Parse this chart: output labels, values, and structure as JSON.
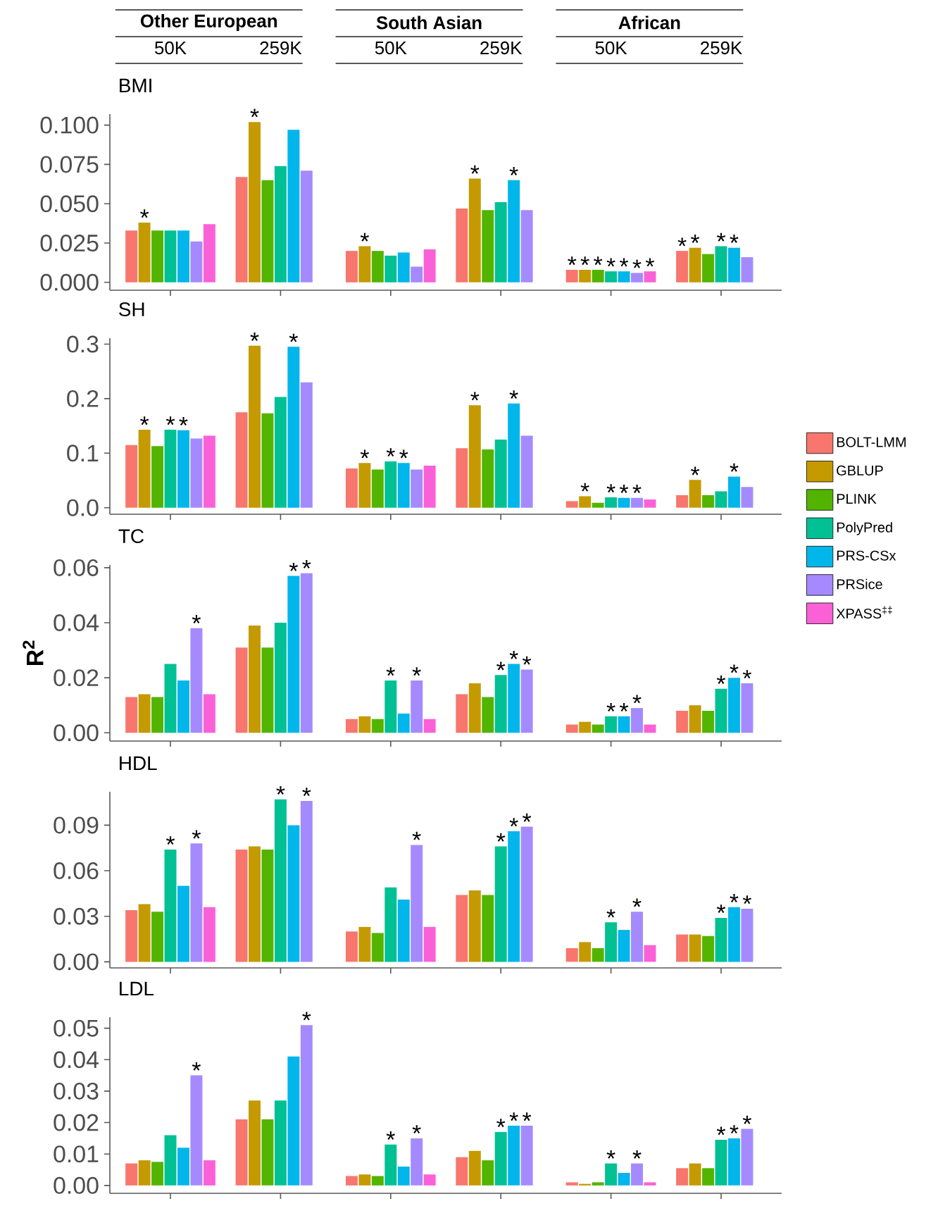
{
  "chart_data": [
    {
      "type": "bar",
      "title": "BMI",
      "categories": [
        "50K",
        "259K",
        "50K",
        "259K",
        "50K",
        "259K"
      ],
      "annotations": [
        "Other European",
        "South Asian",
        "African"
      ],
      "ylim": [
        -0.005,
        0.107
      ],
      "yticks": [
        {
          "value": 0,
          "label": "0.000"
        },
        {
          "value": 0.025,
          "label": "0.025"
        },
        {
          "value": 0.05,
          "label": "0.050"
        },
        {
          "value": 0.075,
          "label": "0.075"
        },
        {
          "value": 0.1,
          "label": "0.100"
        }
      ],
      "series": [
        {
          "color": "#f8766d",
          "values": [
            0.033,
            0.067,
            0.02,
            0.047,
            0.008,
            0.02
          ],
          "value_labels": [
            null,
            null,
            null,
            null,
            "*",
            "*"
          ]
        },
        {
          "color": "#c49a00",
          "values": [
            0.038,
            0.102,
            0.023,
            0.066,
            0.008,
            0.022
          ],
          "value_labels": [
            "*",
            "*",
            "*",
            "*",
            "*",
            "*"
          ]
        },
        {
          "color": "#53b400",
          "values": [
            0.033,
            0.065,
            0.02,
            0.046,
            0.008,
            0.018
          ],
          "value_labels": [
            null,
            null,
            null,
            null,
            "*",
            null
          ]
        },
        {
          "color": "#00c094",
          "values": [
            0.033,
            0.074,
            0.017,
            0.051,
            0.007,
            0.023
          ],
          "value_labels": [
            null,
            null,
            null,
            null,
            "*",
            "*"
          ]
        },
        {
          "color": "#00b6eb",
          "values": [
            0.033,
            0.097,
            0.019,
            0.065,
            0.007,
            0.022
          ],
          "value_labels": [
            null,
            null,
            null,
            "*",
            "*",
            "*"
          ]
        },
        {
          "color": "#a58aff",
          "values": [
            0.026,
            0.071,
            0.01,
            0.046,
            0.006,
            0.016
          ],
          "value_labels": [
            null,
            null,
            null,
            null,
            "*",
            null
          ]
        },
        {
          "color": "#fb61d7",
          "values": [
            0.037,
            null,
            0.021,
            null,
            0.007,
            null
          ],
          "value_labels": [
            null,
            null,
            null,
            null,
            "*",
            null
          ]
        }
      ]
    },
    {
      "type": "bar",
      "title": "SH",
      "categories": [
        null,
        null,
        null,
        null,
        null,
        null
      ],
      "ylim": [
        -0.012,
        0.311
      ],
      "yticks": [
        {
          "value": 0,
          "label": "0.0"
        },
        {
          "value": 0.1,
          "label": "0.1"
        },
        {
          "value": 0.2,
          "label": "0.2"
        },
        {
          "value": 0.3,
          "label": "0.3"
        }
      ],
      "series": [
        {
          "color": "#f8766d",
          "values": [
            0.115,
            0.175,
            0.072,
            0.109,
            0.012,
            0.023
          ],
          "value_labels": [
            null,
            null,
            null,
            null,
            null,
            null
          ]
        },
        {
          "color": "#c49a00",
          "values": [
            0.143,
            0.297,
            0.082,
            0.188,
            0.021,
            0.051
          ],
          "value_labels": [
            "*",
            "*",
            "*",
            "*",
            "*",
            "*"
          ]
        },
        {
          "color": "#53b400",
          "values": [
            0.113,
            0.173,
            0.07,
            0.107,
            0.009,
            0.023
          ],
          "value_labels": [
            null,
            null,
            null,
            null,
            null,
            null
          ]
        },
        {
          "color": "#00c094",
          "values": [
            0.143,
            0.203,
            0.085,
            0.125,
            0.019,
            0.03
          ],
          "value_labels": [
            "*",
            null,
            "*",
            null,
            "*",
            null
          ]
        },
        {
          "color": "#00b6eb",
          "values": [
            0.142,
            0.295,
            0.082,
            0.191,
            0.018,
            0.057
          ],
          "value_labels": [
            "*",
            "*",
            "*",
            "*",
            "*",
            "*"
          ]
        },
        {
          "color": "#a58aff",
          "values": [
            0.127,
            0.23,
            0.07,
            0.132,
            0.018,
            0.038
          ],
          "value_labels": [
            null,
            null,
            null,
            null,
            "*",
            null
          ]
        },
        {
          "color": "#fb61d7",
          "values": [
            0.132,
            null,
            0.077,
            null,
            0.015,
            null
          ],
          "value_labels": [
            null,
            null,
            null,
            null,
            null,
            null
          ]
        }
      ]
    },
    {
      "type": "bar",
      "title": "TC",
      "ylabel": "R$^{2}$",
      "legend": "right",
      "categories": [
        null,
        null,
        null,
        null,
        null,
        null
      ],
      "ylim": [
        -0.003,
        0.061
      ],
      "yticks": [
        {
          "value": 0,
          "label": "0.00"
        },
        {
          "value": 0.02,
          "label": "0.02"
        },
        {
          "value": 0.04,
          "label": "0.04"
        },
        {
          "value": 0.06,
          "label": "0.06"
        }
      ],
      "series": [
        {
          "name": "BOLT-LMM",
          "color": "#f8766d",
          "values": [
            0.013,
            0.031,
            0.005,
            0.014,
            0.003,
            0.008
          ],
          "value_labels": [
            null,
            null,
            null,
            null,
            null,
            null
          ]
        },
        {
          "name": "GBLUP",
          "color": "#c49a00",
          "values": [
            0.014,
            0.039,
            0.006,
            0.018,
            0.004,
            0.01
          ],
          "value_labels": [
            null,
            null,
            null,
            null,
            null,
            null
          ]
        },
        {
          "name": "PLINK",
          "color": "#53b400",
          "values": [
            0.013,
            0.031,
            0.005,
            0.013,
            0.003,
            0.008
          ],
          "value_labels": [
            null,
            null,
            null,
            null,
            null,
            null
          ]
        },
        {
          "name": "PolyPred",
          "color": "#00c094",
          "values": [
            0.025,
            0.04,
            0.019,
            0.021,
            0.006,
            0.016
          ],
          "value_labels": [
            null,
            null,
            "*",
            "*",
            "*",
            "*"
          ]
        },
        {
          "name": "PRS-CSx",
          "color": "#00b6eb",
          "values": [
            0.019,
            0.057,
            0.007,
            0.025,
            0.006,
            0.02
          ],
          "value_labels": [
            null,
            "*",
            null,
            "*",
            "*",
            "*"
          ]
        },
        {
          "name": "PRSice",
          "color": "#a58aff",
          "values": [
            0.038,
            0.058,
            0.019,
            0.023,
            0.009,
            0.018
          ],
          "value_labels": [
            "*",
            "*",
            "*",
            "*",
            "*",
            "*"
          ]
        },
        {
          "name": "XPASS$^{‡‡}$",
          "color": "#fb61d7",
          "values": [
            0.014,
            null,
            0.005,
            null,
            0.003,
            null
          ],
          "value_labels": [
            null,
            null,
            null,
            null,
            null,
            null
          ]
        }
      ]
    },
    {
      "type": "bar",
      "title": "HDL",
      "categories": [
        null,
        null,
        null,
        null,
        null,
        null
      ],
      "ylim": [
        -0.004,
        0.112
      ],
      "yticks": [
        {
          "value": 0,
          "label": "0.00"
        },
        {
          "value": 0.03,
          "label": "0.03"
        },
        {
          "value": 0.06,
          "label": "0.06"
        },
        {
          "value": 0.09,
          "label": "0.09"
        }
      ],
      "series": [
        {
          "color": "#f8766d",
          "values": [
            0.034,
            0.074,
            0.02,
            0.044,
            0.009,
            0.018
          ],
          "value_labels": [
            null,
            null,
            null,
            null,
            null,
            null
          ]
        },
        {
          "color": "#c49a00",
          "values": [
            0.038,
            0.076,
            0.023,
            0.047,
            0.013,
            0.018
          ],
          "value_labels": [
            null,
            null,
            null,
            null,
            null,
            null
          ]
        },
        {
          "color": "#53b400",
          "values": [
            0.033,
            0.074,
            0.019,
            0.044,
            0.009,
            0.017
          ],
          "value_labels": [
            null,
            null,
            null,
            null,
            null,
            null
          ]
        },
        {
          "color": "#00c094",
          "values": [
            0.074,
            0.107,
            0.049,
            0.076,
            0.026,
            0.029
          ],
          "value_labels": [
            "*",
            "*",
            null,
            "*",
            "*",
            "*"
          ]
        },
        {
          "color": "#00b6eb",
          "values": [
            0.05,
            0.09,
            0.041,
            0.086,
            0.021,
            0.036
          ],
          "value_labels": [
            null,
            null,
            null,
            "*",
            null,
            "*"
          ]
        },
        {
          "color": "#a58aff",
          "values": [
            0.078,
            0.106,
            0.077,
            0.089,
            0.033,
            0.035
          ],
          "value_labels": [
            "*",
            "*",
            "*",
            "*",
            "*",
            "*"
          ]
        },
        {
          "color": "#fb61d7",
          "values": [
            0.036,
            null,
            0.023,
            null,
            0.011,
            null
          ],
          "value_labels": [
            null,
            null,
            null,
            null,
            null,
            null
          ]
        }
      ]
    },
    {
      "type": "bar",
      "title": "LDL",
      "categories": [
        null,
        null,
        null,
        null,
        null,
        null
      ],
      "ylim": [
        -0.0025,
        0.0535
      ],
      "yticks": [
        {
          "value": 0,
          "label": "0.00"
        },
        {
          "value": 0.01,
          "label": "0.01"
        },
        {
          "value": 0.02,
          "label": "0.02"
        },
        {
          "value": 0.03,
          "label": "0.03"
        },
        {
          "value": 0.04,
          "label": "0.04"
        },
        {
          "value": 0.05,
          "label": "0.05"
        }
      ],
      "series": [
        {
          "color": "#f8766d",
          "values": [
            0.007,
            0.021,
            0.003,
            0.009,
            0.001,
            0.0055
          ],
          "value_labels": [
            null,
            null,
            null,
            null,
            null,
            null
          ]
        },
        {
          "color": "#c49a00",
          "values": [
            0.008,
            0.027,
            0.0035,
            0.011,
            0.0005,
            0.007
          ],
          "value_labels": [
            null,
            null,
            null,
            null,
            null,
            null
          ]
        },
        {
          "color": "#53b400",
          "values": [
            0.0075,
            0.021,
            0.003,
            0.008,
            0.001,
            0.0055
          ],
          "value_labels": [
            null,
            null,
            null,
            null,
            null,
            null
          ]
        },
        {
          "color": "#00c094",
          "values": [
            0.016,
            0.027,
            0.013,
            0.017,
            0.007,
            0.0145
          ],
          "value_labels": [
            null,
            null,
            "*",
            "*",
            "*",
            "*"
          ]
        },
        {
          "color": "#00b6eb",
          "values": [
            0.012,
            0.041,
            0.006,
            0.019,
            0.004,
            0.015
          ],
          "value_labels": [
            null,
            null,
            null,
            "*",
            null,
            "*"
          ]
        },
        {
          "color": "#a58aff",
          "values": [
            0.035,
            0.051,
            0.015,
            0.019,
            0.007,
            0.018
          ],
          "value_labels": [
            "*",
            "*",
            "*",
            "*",
            "*",
            "*"
          ]
        },
        {
          "color": "#fb61d7",
          "values": [
            0.008,
            null,
            0.0035,
            null,
            0.001,
            null
          ],
          "value_labels": [
            null,
            null,
            null,
            null,
            null,
            null
          ]
        }
      ]
    }
  ]
}
